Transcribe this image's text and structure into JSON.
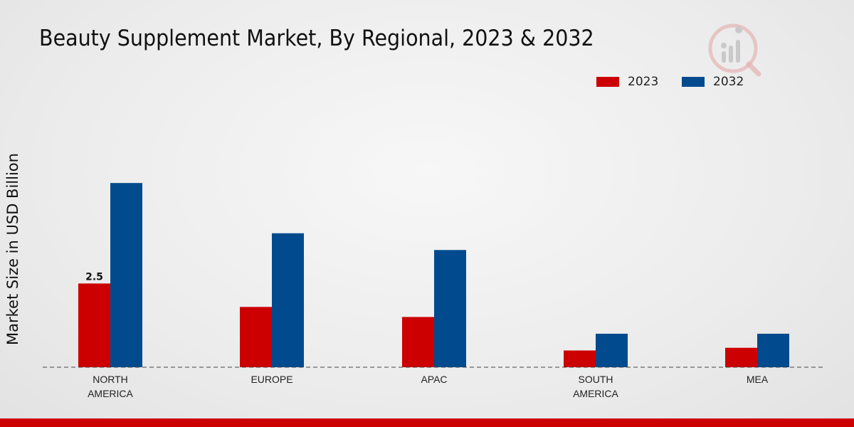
{
  "chart_data": {
    "type": "bar",
    "title": "Beauty Supplement Market, By Regional, 2023 & 2032",
    "xlabel": "",
    "ylabel": "Market Size in USD Billion",
    "categories": [
      [
        "NORTH",
        "AMERICA"
      ],
      [
        "EUROPE"
      ],
      [
        "APAC"
      ],
      [
        "SOUTH",
        "AMERICA"
      ],
      [
        "MEA"
      ]
    ],
    "series": [
      {
        "name": "2023",
        "color": "#cc0000",
        "values": [
          2.5,
          1.8,
          1.5,
          0.5,
          0.58
        ]
      },
      {
        "name": "2032",
        "color": "#004a8d",
        "values": [
          5.5,
          4.0,
          3.5,
          1.0,
          1.0
        ]
      }
    ],
    "data_labels": [
      {
        "series": 0,
        "index": 0,
        "text": "2.5"
      }
    ],
    "ylim": [
      0,
      8.5
    ],
    "grid": false,
    "legend_position": "top-right"
  },
  "footer_color": "#cc0000"
}
